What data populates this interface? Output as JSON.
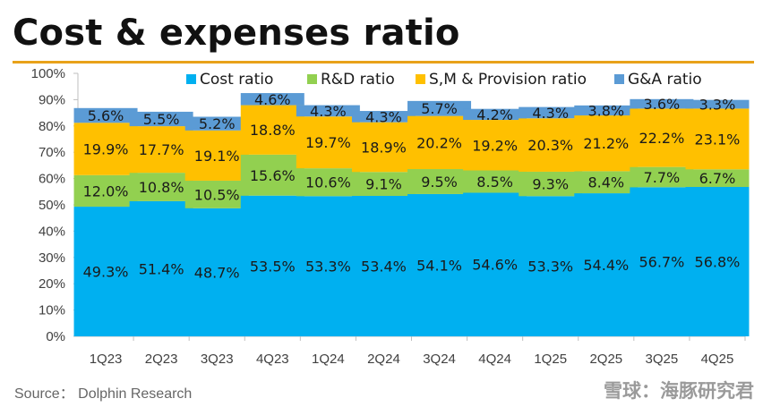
{
  "header": {
    "title": "Cost & expenses ratio"
  },
  "footer": {
    "source": "Source：  Dolphin Research",
    "watermark": "雪球：海豚研究君"
  },
  "chart_data": {
    "type": "bar",
    "stacked": true,
    "categories": [
      "1Q23",
      "2Q23",
      "3Q23",
      "4Q23",
      "1Q24",
      "2Q24",
      "3Q24",
      "4Q24",
      "1Q25",
      "2Q25",
      "3Q25",
      "4Q25"
    ],
    "ylim": [
      0,
      100
    ],
    "yticks": [
      "0%",
      "10%",
      "20%",
      "30%",
      "40%",
      "50%",
      "60%",
      "70%",
      "80%",
      "90%",
      "100%"
    ],
    "grid": false,
    "legend_position": "top",
    "series": [
      {
        "name": "Cost ratio",
        "color": "#00b0f0",
        "values": [
          49.3,
          51.4,
          48.7,
          53.5,
          53.3,
          53.4,
          54.1,
          54.6,
          53.3,
          54.4,
          56.7,
          56.8
        ],
        "labels": [
          "49.3%",
          "51.4%",
          "48.7%",
          "53.5%",
          "53.3%",
          "53.4%",
          "54.1%",
          "54.6%",
          "53.3%",
          "54.4%",
          "56.7%",
          "56.8%"
        ]
      },
      {
        "name": "R&D ratio",
        "color": "#92d050",
        "values": [
          12.0,
          10.8,
          10.5,
          15.6,
          10.6,
          9.1,
          9.5,
          8.5,
          9.3,
          8.4,
          7.7,
          6.7
        ],
        "labels": [
          "12.0%",
          "10.8%",
          "10.5%",
          "15.6%",
          "10.6%",
          "9.1%",
          "9.5%",
          "8.5%",
          "9.3%",
          "8.4%",
          "7.7%",
          "6.7%"
        ]
      },
      {
        "name": "S,M & Provision ratio",
        "color": "#ffc000",
        "values": [
          19.9,
          17.7,
          19.1,
          18.8,
          19.7,
          18.9,
          20.2,
          19.2,
          20.3,
          21.2,
          22.2,
          23.1
        ],
        "labels": [
          "19.9%",
          "17.7%",
          "19.1%",
          "18.8%",
          "19.7%",
          "18.9%",
          "20.2%",
          "19.2%",
          "20.3%",
          "21.2%",
          "22.2%",
          "23.1%"
        ]
      },
      {
        "name": "G&A ratio",
        "color": "#5b9bd5",
        "values": [
          5.6,
          5.5,
          5.2,
          4.6,
          4.3,
          4.3,
          5.7,
          4.2,
          4.3,
          3.8,
          3.6,
          3.3
        ],
        "labels": [
          "5.6%",
          "5.5%",
          "5.2%",
          "4.6%",
          "4.3%",
          "4.3%",
          "5.7%",
          "4.2%",
          "4.3%",
          "3.8%",
          "3.6%",
          "3.3%"
        ]
      }
    ]
  }
}
